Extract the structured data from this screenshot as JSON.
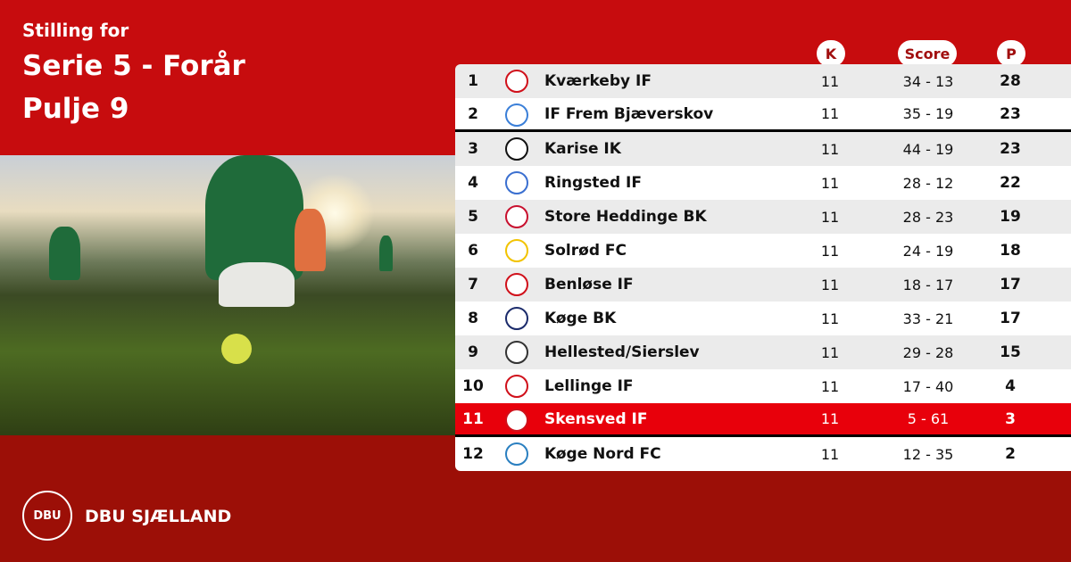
{
  "header": {
    "line1": "Stilling for",
    "line2": "Serie 5 - Forår",
    "line3": "Pulje 9"
  },
  "columns": {
    "k": "K",
    "score": "Score",
    "p": "P"
  },
  "colors": {
    "background": "#c70c0e",
    "footer": "#9c0f07",
    "highlight": "#e8000b"
  },
  "rows": [
    {
      "pos": "1",
      "team": "Kværkeby IF",
      "k": "11",
      "score": "34 - 13",
      "p": "28",
      "logo_color": "#d0101a"
    },
    {
      "pos": "2",
      "team": "IF Frem Bjæverskov",
      "k": "11",
      "score": "35 - 19",
      "p": "23",
      "logo_color": "#3a7fd8"
    },
    {
      "pos": "3",
      "team": "Karise IK",
      "k": "11",
      "score": "44 - 19",
      "p": "23",
      "logo_color": "#111111"
    },
    {
      "pos": "4",
      "team": "Ringsted IF",
      "k": "11",
      "score": "28 - 12",
      "p": "22",
      "logo_color": "#3a6fd0"
    },
    {
      "pos": "5",
      "team": "Store Heddinge BK",
      "k": "11",
      "score": "28 - 23",
      "p": "19",
      "logo_color": "#c8102e"
    },
    {
      "pos": "6",
      "team": "Solrød FC",
      "k": "11",
      "score": "24 - 19",
      "p": "18",
      "logo_color": "#f2c300"
    },
    {
      "pos": "7",
      "team": "Benløse IF",
      "k": "11",
      "score": "18 - 17",
      "p": "17",
      "logo_color": "#d0101a"
    },
    {
      "pos": "8",
      "team": "Køge BK",
      "k": "11",
      "score": "33 - 21",
      "p": "17",
      "logo_color": "#1b2b6b"
    },
    {
      "pos": "9",
      "team": "Hellested/Sierslev",
      "k": "11",
      "score": "29 - 28",
      "p": "15",
      "logo_color": "#333333"
    },
    {
      "pos": "10",
      "team": "Lellinge IF",
      "k": "11",
      "score": "17 - 40",
      "p": "4",
      "logo_color": "#d0101a"
    },
    {
      "pos": "11",
      "team": "Skensved IF",
      "k": "11",
      "score": "5 - 61",
      "p": "3",
      "logo_color": "#d0101a"
    },
    {
      "pos": "12",
      "team": "Køge Nord FC",
      "k": "11",
      "score": "12 - 35",
      "p": "2",
      "logo_color": "#2a7fc0"
    }
  ],
  "brand": {
    "logo_text": "DBU",
    "name": "DBU SJÆLLAND"
  }
}
